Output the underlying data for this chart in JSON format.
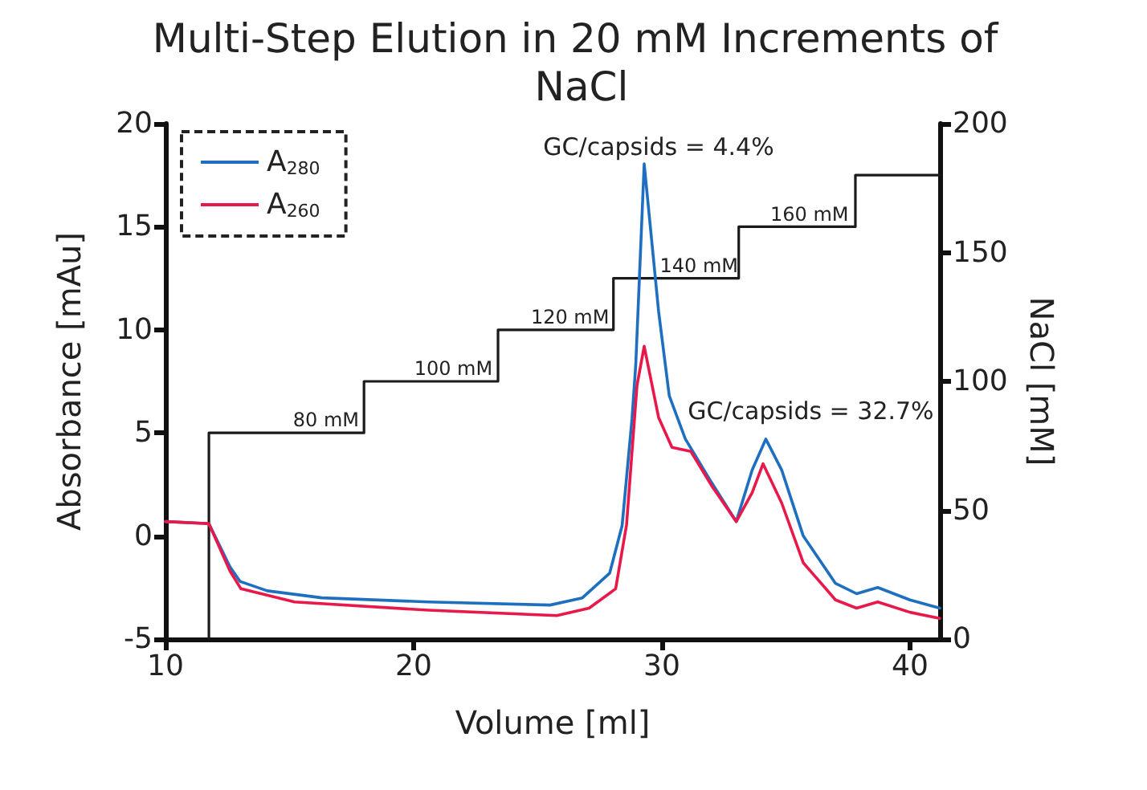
{
  "chart_data": {
    "type": "line",
    "title": "Multi-Step Elution in 20 mM Increments of NaCl",
    "xlabel": "Volume [ml]",
    "ylabel": "Absorbance [mAu]",
    "y2label": "NaCl [mM]",
    "xlim": [
      10,
      41.2
    ],
    "xticks": [
      10,
      20,
      30,
      40
    ],
    "ylim": [
      -5,
      20
    ],
    "yticks": [
      -5,
      0,
      5,
      10,
      15,
      20
    ],
    "y2lim": [
      0,
      200
    ],
    "y2ticks": [
      0,
      50,
      100,
      150,
      200
    ],
    "grid": false,
    "legend": "top left",
    "marker": "none",
    "line_style": "solid",
    "series": [
      {
        "name": "A$_{280}$",
        "color": "#1f6fc0",
        "x": [
          10,
          11.75,
          12.6,
          13.0,
          14.1,
          16.3,
          20.6,
          25.5,
          26.8,
          27.9,
          28.4,
          28.8,
          28.95,
          29.29,
          29.87,
          30.3,
          30.95,
          32.0,
          33.0,
          33.64,
          34.19,
          34.83,
          35.7,
          37.0,
          37.85,
          38.7,
          40.0,
          41.2
        ],
        "values": [
          0.7,
          0.6,
          -1.5,
          -2.2,
          -2.66,
          -3.0,
          -3.2,
          -3.35,
          -3.0,
          -1.8,
          0.5,
          5.7,
          8.3,
          18.05,
          10.9,
          6.8,
          4.7,
          2.6,
          0.7,
          3.2,
          4.7,
          3.2,
          0.0,
          -2.3,
          -2.8,
          -2.5,
          -3.1,
          -3.5
        ]
      },
      {
        "name": "A$_{260}$",
        "color": "#e8194a",
        "x": [
          10,
          11.75,
          12.6,
          13.04,
          15.2,
          20.6,
          25.77,
          27.07,
          28.14,
          28.58,
          29.0,
          29.29,
          29.87,
          30.41,
          31.17,
          32.03,
          33.0,
          33.64,
          34.08,
          34.83,
          35.7,
          37.0,
          37.85,
          38.7,
          40.0,
          41.2
        ],
        "values": [
          0.7,
          0.6,
          -1.7,
          -2.56,
          -3.2,
          -3.6,
          -3.86,
          -3.5,
          -2.56,
          0.55,
          7.3,
          9.2,
          5.75,
          4.3,
          4.1,
          2.4,
          0.7,
          2.1,
          3.5,
          1.6,
          -1.3,
          -3.1,
          -3.5,
          -3.2,
          -3.7,
          -4.0
        ]
      },
      {
        "type": "step",
        "axis": "y2",
        "color": "#1a1a1a",
        "x": [
          11.75,
          11.75,
          18.0,
          23.4,
          28.05,
          33.1,
          37.8,
          41.2
        ],
        "values": [
          0,
          80,
          100,
          120,
          140,
          160,
          180,
          180
        ]
      }
    ],
    "annotations": [
      {
        "text": "80 mM",
        "x": 16.47,
        "y": 5.15
      },
      {
        "text": "100 mM",
        "x": 21.6,
        "y": 7.65
      },
      {
        "text": "120 mM",
        "x": 26.3,
        "y": 10.15
      },
      {
        "text": "140 mM",
        "x": 31.5,
        "y": 12.65
      },
      {
        "text": "160 mM",
        "x": 35.95,
        "y": 15.15
      },
      {
        "text": "GC/capsids = 4.4%",
        "x": 29.29,
        "y": 18.05
      },
      {
        "text": "GC/capsids = 32.7%",
        "x": 34.19,
        "y": 4.7
      }
    ]
  }
}
